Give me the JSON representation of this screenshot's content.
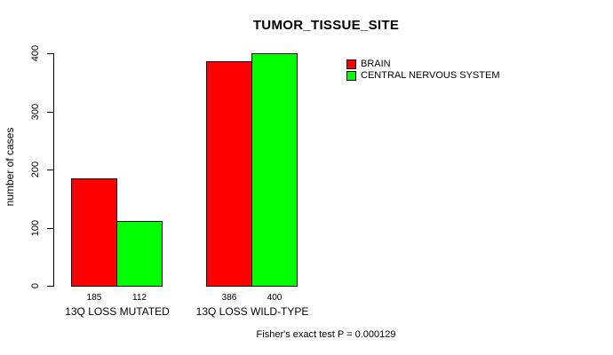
{
  "chart_data": {
    "type": "bar",
    "title": "TUMOR_TISSUE_SITE",
    "ylabel": "number of cases",
    "xlabel": "",
    "categories": [
      "13Q LOSS MUTATED",
      "13Q LOSS WILD-TYPE"
    ],
    "series": [
      {
        "name": "BRAIN",
        "color": "#ff0000",
        "values": [
          185,
          386
        ]
      },
      {
        "name": "CENTRAL NERVOUS SYSTEM",
        "color": "#00ff00",
        "values": [
          112,
          400
        ]
      }
    ],
    "yticks": [
      0,
      100,
      200,
      300,
      400
    ],
    "ylim": [
      0,
      400
    ],
    "grid": false,
    "legend_position": "top-right",
    "bar_border_color": "#000000",
    "background_color": "#ffffff",
    "annotation": "Fisher's exact test P = 0.000129"
  }
}
